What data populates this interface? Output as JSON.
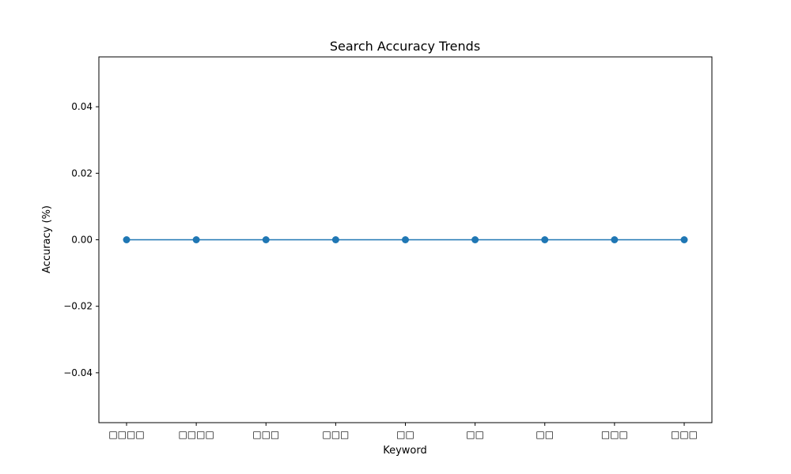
{
  "chart_data": {
    "type": "line",
    "title": "Search Accuracy Trends",
    "xlabel": "Keyword",
    "ylabel": "Accuracy (%)",
    "categories": [
      "□□□□",
      "□□□□",
      "□□□",
      "□□□",
      "□□",
      "□□",
      "□□",
      "□□□",
      "□□□"
    ],
    "series": [
      {
        "values": [
          0,
          0,
          0,
          0,
          0,
          0,
          0,
          0,
          0
        ],
        "color": "#1f77b4"
      }
    ],
    "ylim": [
      -0.055,
      0.055
    ],
    "yticks": [
      -0.04,
      -0.02,
      0.0,
      0.02,
      0.04
    ],
    "ytick_labels": [
      "−0.04",
      "−0.02",
      "0.00",
      "0.02",
      "0.04"
    ],
    "grid": false,
    "legend": false
  }
}
